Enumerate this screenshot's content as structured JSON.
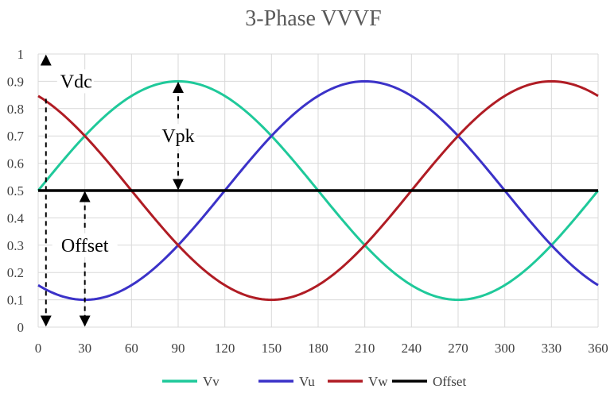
{
  "chart_data": {
    "type": "line",
    "title": "3-Phase VVVF",
    "xlabel": "",
    "ylabel": "",
    "xlim": [
      0,
      360
    ],
    "ylim": [
      0,
      1
    ],
    "x_ticks": [
      0,
      30,
      60,
      90,
      120,
      150,
      180,
      210,
      240,
      270,
      300,
      330,
      360
    ],
    "x_tick_labels": [
      "0",
      "30",
      "60",
      "90",
      "120",
      "150",
      "180",
      "210",
      "240",
      "270",
      "300",
      "330",
      "360"
    ],
    "y_ticks": [
      0,
      0.1,
      0.2,
      0.3,
      0.4,
      0.5,
      0.6,
      0.7,
      0.8,
      0.9,
      1
    ],
    "y_tick_labels": [
      "0",
      "0.1",
      "0.2",
      "0.3",
      "0.4",
      "0.5",
      "0.6",
      "0.7",
      "0.8",
      "0.9",
      "1"
    ],
    "grid": true,
    "legend_position": "bottom",
    "series": [
      {
        "name": "Vv",
        "color": "#1fc99a",
        "offset": 0.5,
        "amplitude": 0.4,
        "phase_deg": 0,
        "x": [
          0,
          30,
          60,
          90,
          120,
          150,
          180,
          210,
          240,
          270,
          300,
          330,
          360
        ],
        "values": [
          0.5,
          0.7,
          0.846,
          0.9,
          0.846,
          0.7,
          0.5,
          0.3,
          0.154,
          0.1,
          0.154,
          0.3,
          0.5
        ]
      },
      {
        "name": "Vu",
        "color": "#3b32c8",
        "offset": 0.5,
        "amplitude": 0.4,
        "phase_deg": -120,
        "x": [
          0,
          30,
          60,
          90,
          120,
          150,
          180,
          210,
          240,
          270,
          300,
          330,
          360
        ],
        "values": [
          0.154,
          0.1,
          0.154,
          0.3,
          0.5,
          0.7,
          0.846,
          0.9,
          0.846,
          0.7,
          0.5,
          0.3,
          0.154
        ]
      },
      {
        "name": "Vw",
        "color": "#b01c24",
        "offset": 0.5,
        "amplitude": 0.4,
        "phase_deg": 120,
        "x": [
          0,
          30,
          60,
          90,
          120,
          150,
          180,
          210,
          240,
          270,
          300,
          330,
          360
        ],
        "values": [
          0.846,
          0.7,
          0.5,
          0.3,
          0.154,
          0.1,
          0.154,
          0.3,
          0.5,
          0.7,
          0.846,
          0.9,
          0.846
        ]
      },
      {
        "name": "Offset",
        "color": "#000000",
        "offset": 0.5,
        "amplitude": 0,
        "phase_deg": 0,
        "x": [
          0,
          360
        ],
        "values": [
          0.5,
          0.5
        ]
      }
    ],
    "annotations": [
      {
        "label": "Vdc",
        "x": 5,
        "from": 0,
        "to": 1,
        "label_y": 0.9
      },
      {
        "label": "Vpk",
        "x": 90,
        "from": 0.5,
        "to": 0.9,
        "label_y": 0.7
      },
      {
        "label": "Offset",
        "x": 30,
        "from": 0,
        "to": 0.5,
        "label_y": 0.3
      }
    ]
  }
}
